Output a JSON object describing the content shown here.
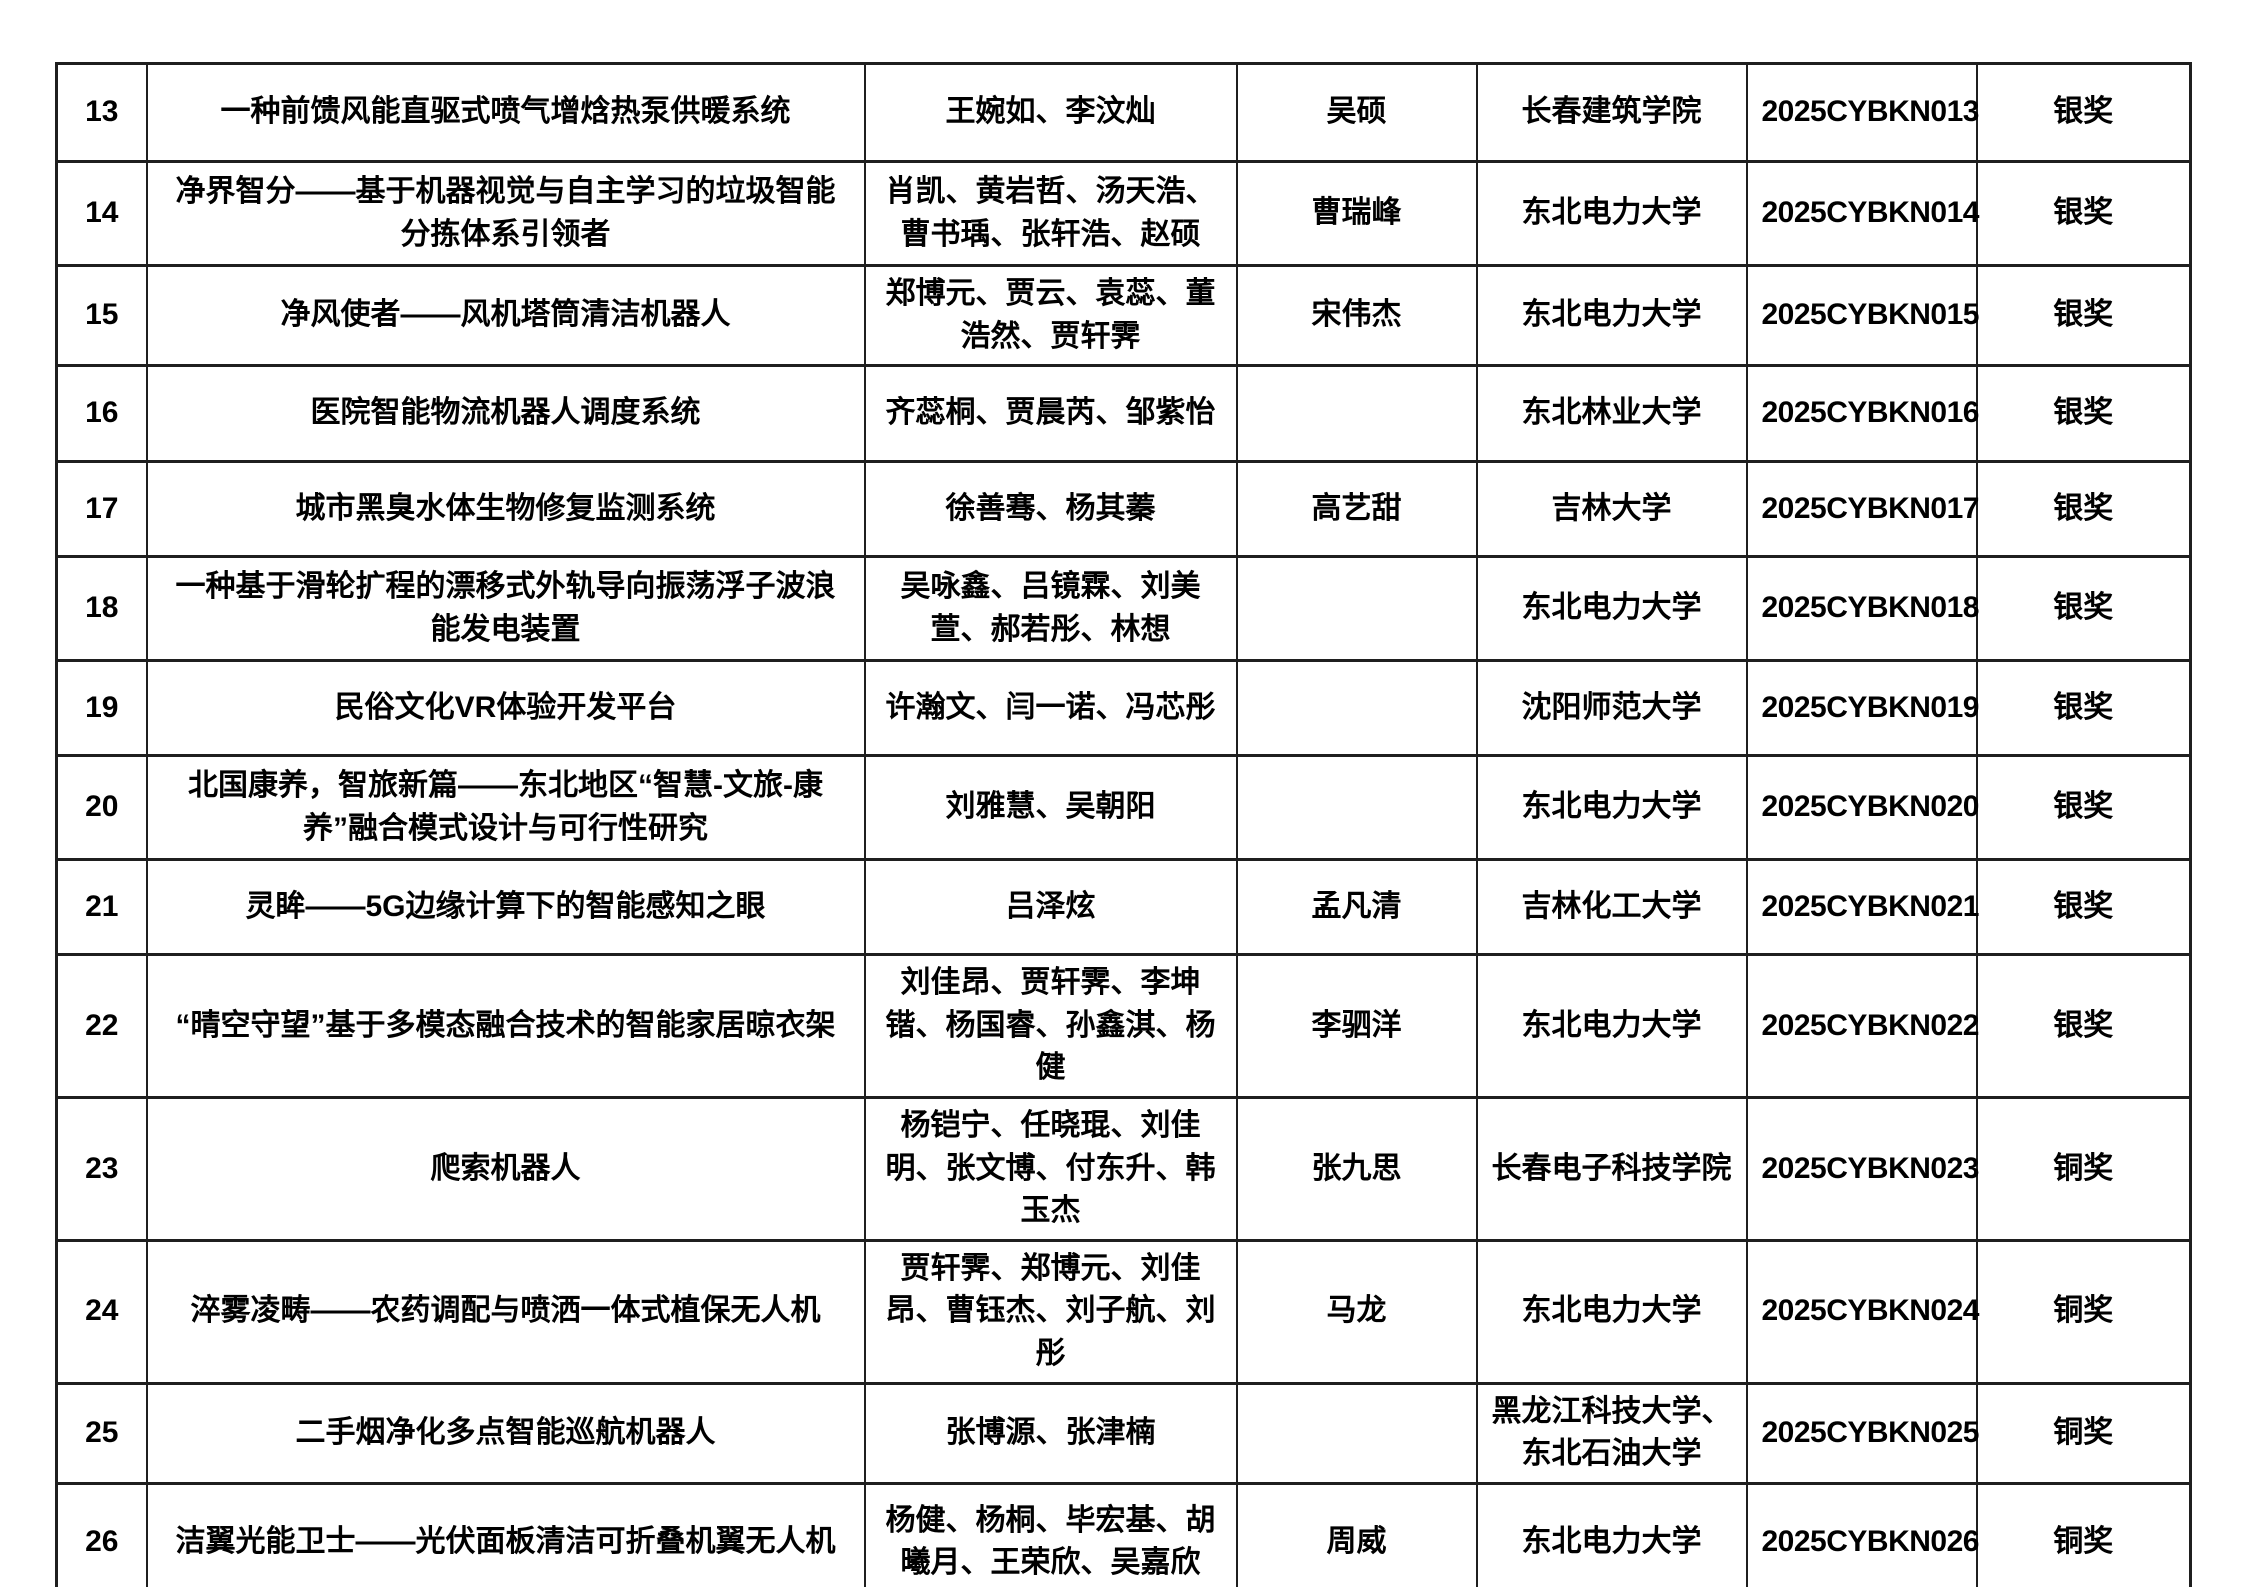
{
  "page": {
    "background_color": "#ffffff",
    "border_color": "#1f1f1f",
    "text_color": "#000000"
  },
  "table": {
    "rows": [
      {
        "no": "13",
        "project": "一种前馈风能直驱式喷气增焓热泵供暖系统",
        "members": "王婉如、李汶灿",
        "advisor": "吴硕",
        "university": "长春建筑学院",
        "code": "2025CYBKN013",
        "award": "银奖"
      },
      {
        "no": "14",
        "project": "净界智分——基于机器视觉与自主学习的垃圾智能分拣体系引领者",
        "members": "肖凯、黄岩哲、汤天浩、曹书瑀、张轩浩、赵硕",
        "advisor": "曹瑞峰",
        "university": "东北电力大学",
        "code": "2025CYBKN014",
        "award": "银奖"
      },
      {
        "no": "15",
        "project": "净风使者——风机塔筒清洁机器人",
        "members": "郑博元、贾云、袁蕊、董浩然、贾轩霁",
        "advisor": "宋伟杰",
        "university": "东北电力大学",
        "code": "2025CYBKN015",
        "award": "银奖"
      },
      {
        "no": "16",
        "project": "医院智能物流机器人调度系统",
        "members": "齐蕊桐、贾晨芮、邹紫怡",
        "advisor": "",
        "university": "东北林业大学",
        "code": "2025CYBKN016",
        "award": "银奖"
      },
      {
        "no": "17",
        "project": "城市黑臭水体生物修复监测系统",
        "members": "徐善骞、杨其蓁",
        "advisor": "高艺甜",
        "university": "吉林大学",
        "code": "2025CYBKN017",
        "award": "银奖"
      },
      {
        "no": "18",
        "project": "一种基于滑轮扩程的漂移式外轨导向振荡浮子波浪能发电装置",
        "members": "吴咏鑫、吕镜霖、刘美萱、郝若彤、林想",
        "advisor": "",
        "university": "东北电力大学",
        "code": "2025CYBKN018",
        "award": "银奖"
      },
      {
        "no": "19",
        "project": "民俗文化VR体验开发平台",
        "members": "许瀚文、闫一诺、冯芯彤",
        "advisor": "",
        "university": "沈阳师范大学",
        "code": "2025CYBKN019",
        "award": "银奖"
      },
      {
        "no": "20",
        "project": "北国康养，智旅新篇——东北地区“智慧-文旅-康养”融合模式设计与可行性研究",
        "members": "刘雅慧、吴朝阳",
        "advisor": "",
        "university": "东北电力大学",
        "code": "2025CYBKN020",
        "award": "银奖"
      },
      {
        "no": "21",
        "project": "灵眸——5G边缘计算下的智能感知之眼",
        "members": "吕泽炫",
        "advisor": "孟凡清",
        "university": "吉林化工大学",
        "code": "2025CYBKN021",
        "award": "银奖"
      },
      {
        "no": "22",
        "project": "“晴空守望”基于多模态融合技术的智能家居晾衣架",
        "members": "刘佳昂、贾轩霁、李坤锴、杨国睿、孙鑫淇、杨健",
        "advisor": "李驷洋",
        "university": "东北电力大学",
        "code": "2025CYBKN022",
        "award": "银奖"
      },
      {
        "no": "23",
        "project": "爬索机器人",
        "members": "杨铠宁、任晓琨、刘佳明、张文博、付东升、韩玉杰",
        "advisor": "张九思",
        "university": "长春电子科技学院",
        "code": "2025CYBKN023",
        "award": "铜奖"
      },
      {
        "no": "24",
        "project": "淬雾凌畴——农药调配与喷洒一体式植保无人机",
        "members": "贾轩霁、郑博元、刘佳昂、曹钰杰、刘子航、刘彤",
        "advisor": "马龙",
        "university": "东北电力大学",
        "code": "2025CYBKN024",
        "award": "铜奖"
      },
      {
        "no": "25",
        "project": "二手烟净化多点智能巡航机器人",
        "members": "张博源、张津楠",
        "advisor": "",
        "university": "黑龙江科技大学、东北石油大学",
        "code": "2025CYBKN025",
        "award": "铜奖"
      },
      {
        "no": "26",
        "project": "洁翼光能卫士——光伏面板清洁可折叠机翼无人机",
        "members": "杨健、杨桐、毕宏基、胡曦月、王荣欣、吴嘉欣",
        "advisor": "周威",
        "university": "东北电力大学",
        "code": "2025CYBKN026",
        "award": "铜奖"
      }
    ]
  }
}
